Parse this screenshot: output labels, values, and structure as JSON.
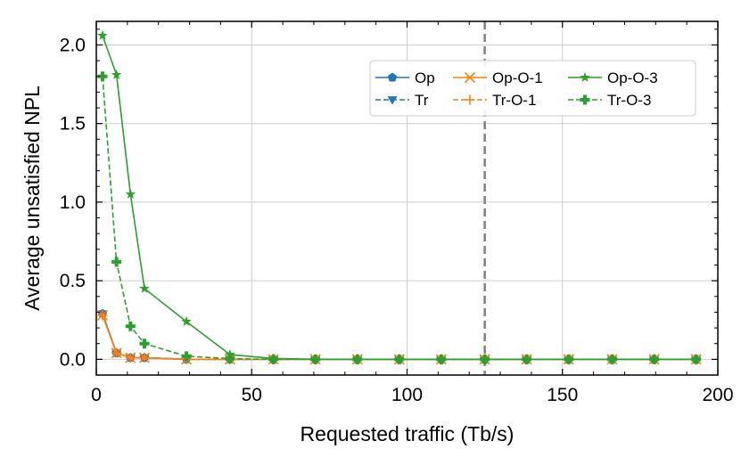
{
  "chart_data": {
    "type": "line",
    "xlabel": "Requested traffic (Tb/s)",
    "ylabel": "Average unsatisfied NPL",
    "xlim": [
      0,
      200
    ],
    "ylim": [
      -0.1,
      2.15
    ],
    "xticks": [
      0,
      50,
      100,
      150,
      200
    ],
    "yticks": [
      0.0,
      0.5,
      1.0,
      1.5,
      2.0
    ],
    "xtick_labels": [
      "0",
      "50",
      "100",
      "150",
      "200"
    ],
    "ytick_labels": [
      "0.0",
      "0.5",
      "1.0",
      "1.5",
      "2.0"
    ],
    "grid": true,
    "legend_position": "top-right",
    "vline_x": 125,
    "colors": {
      "blue": "#1f77b4",
      "orange": "#ff7f0e",
      "green": "#2ca02c",
      "vline": "#808080"
    },
    "x": [
      2,
      6.5,
      11,
      15.5,
      29,
      43,
      57,
      70.5,
      84,
      97.5,
      111,
      125,
      138.5,
      152,
      166,
      179.5,
      193
    ],
    "series": [
      {
        "name": "Op",
        "color": "#1f77b4",
        "dash": "solid",
        "marker": "pentagon",
        "values": [
          0.29,
          0.04,
          0.01,
          0.01,
          0.0,
          0.0,
          0.0,
          0.0,
          0.0,
          0.0,
          0.0,
          0.0,
          0.0,
          0.0,
          0.0,
          0.0,
          0.0
        ]
      },
      {
        "name": "Tr",
        "color": "#1f77b4",
        "dash": "dashed",
        "marker": "triangle-down",
        "values": [
          0.29,
          0.04,
          0.01,
          0.01,
          0.0,
          0.0,
          0.0,
          0.0,
          0.0,
          0.0,
          0.0,
          0.0,
          0.0,
          0.0,
          0.0,
          0.0,
          0.0
        ]
      },
      {
        "name": "Op-O-1",
        "color": "#ff7f0e",
        "dash": "solid",
        "marker": "x",
        "values": [
          0.28,
          0.04,
          0.01,
          0.01,
          0.0,
          0.0,
          0.0,
          0.0,
          0.0,
          0.0,
          0.0,
          0.0,
          0.0,
          0.0,
          0.0,
          0.0,
          0.0
        ]
      },
      {
        "name": "Tr-O-1",
        "color": "#ff7f0e",
        "dash": "dashed",
        "marker": "plus",
        "values": [
          0.28,
          0.04,
          0.01,
          0.01,
          0.0,
          0.0,
          0.0,
          0.0,
          0.0,
          0.0,
          0.0,
          0.0,
          0.0,
          0.0,
          0.0,
          0.0,
          0.0
        ]
      },
      {
        "name": "Op-O-3",
        "color": "#2ca02c",
        "dash": "solid",
        "marker": "star",
        "values": [
          2.06,
          1.81,
          1.05,
          0.45,
          0.24,
          0.03,
          0.005,
          0.0,
          0.0,
          0.0,
          0.0,
          0.0,
          0.0,
          0.0,
          0.0,
          0.0,
          0.0
        ]
      },
      {
        "name": "Tr-O-3",
        "color": "#2ca02c",
        "dash": "dashed",
        "marker": "plus-bold",
        "values": [
          1.8,
          0.62,
          0.21,
          0.1,
          0.02,
          0.004,
          0.0,
          0.0,
          0.0,
          0.0,
          0.0,
          0.0,
          0.0,
          0.0,
          0.0,
          0.0,
          0.0
        ]
      }
    ]
  }
}
